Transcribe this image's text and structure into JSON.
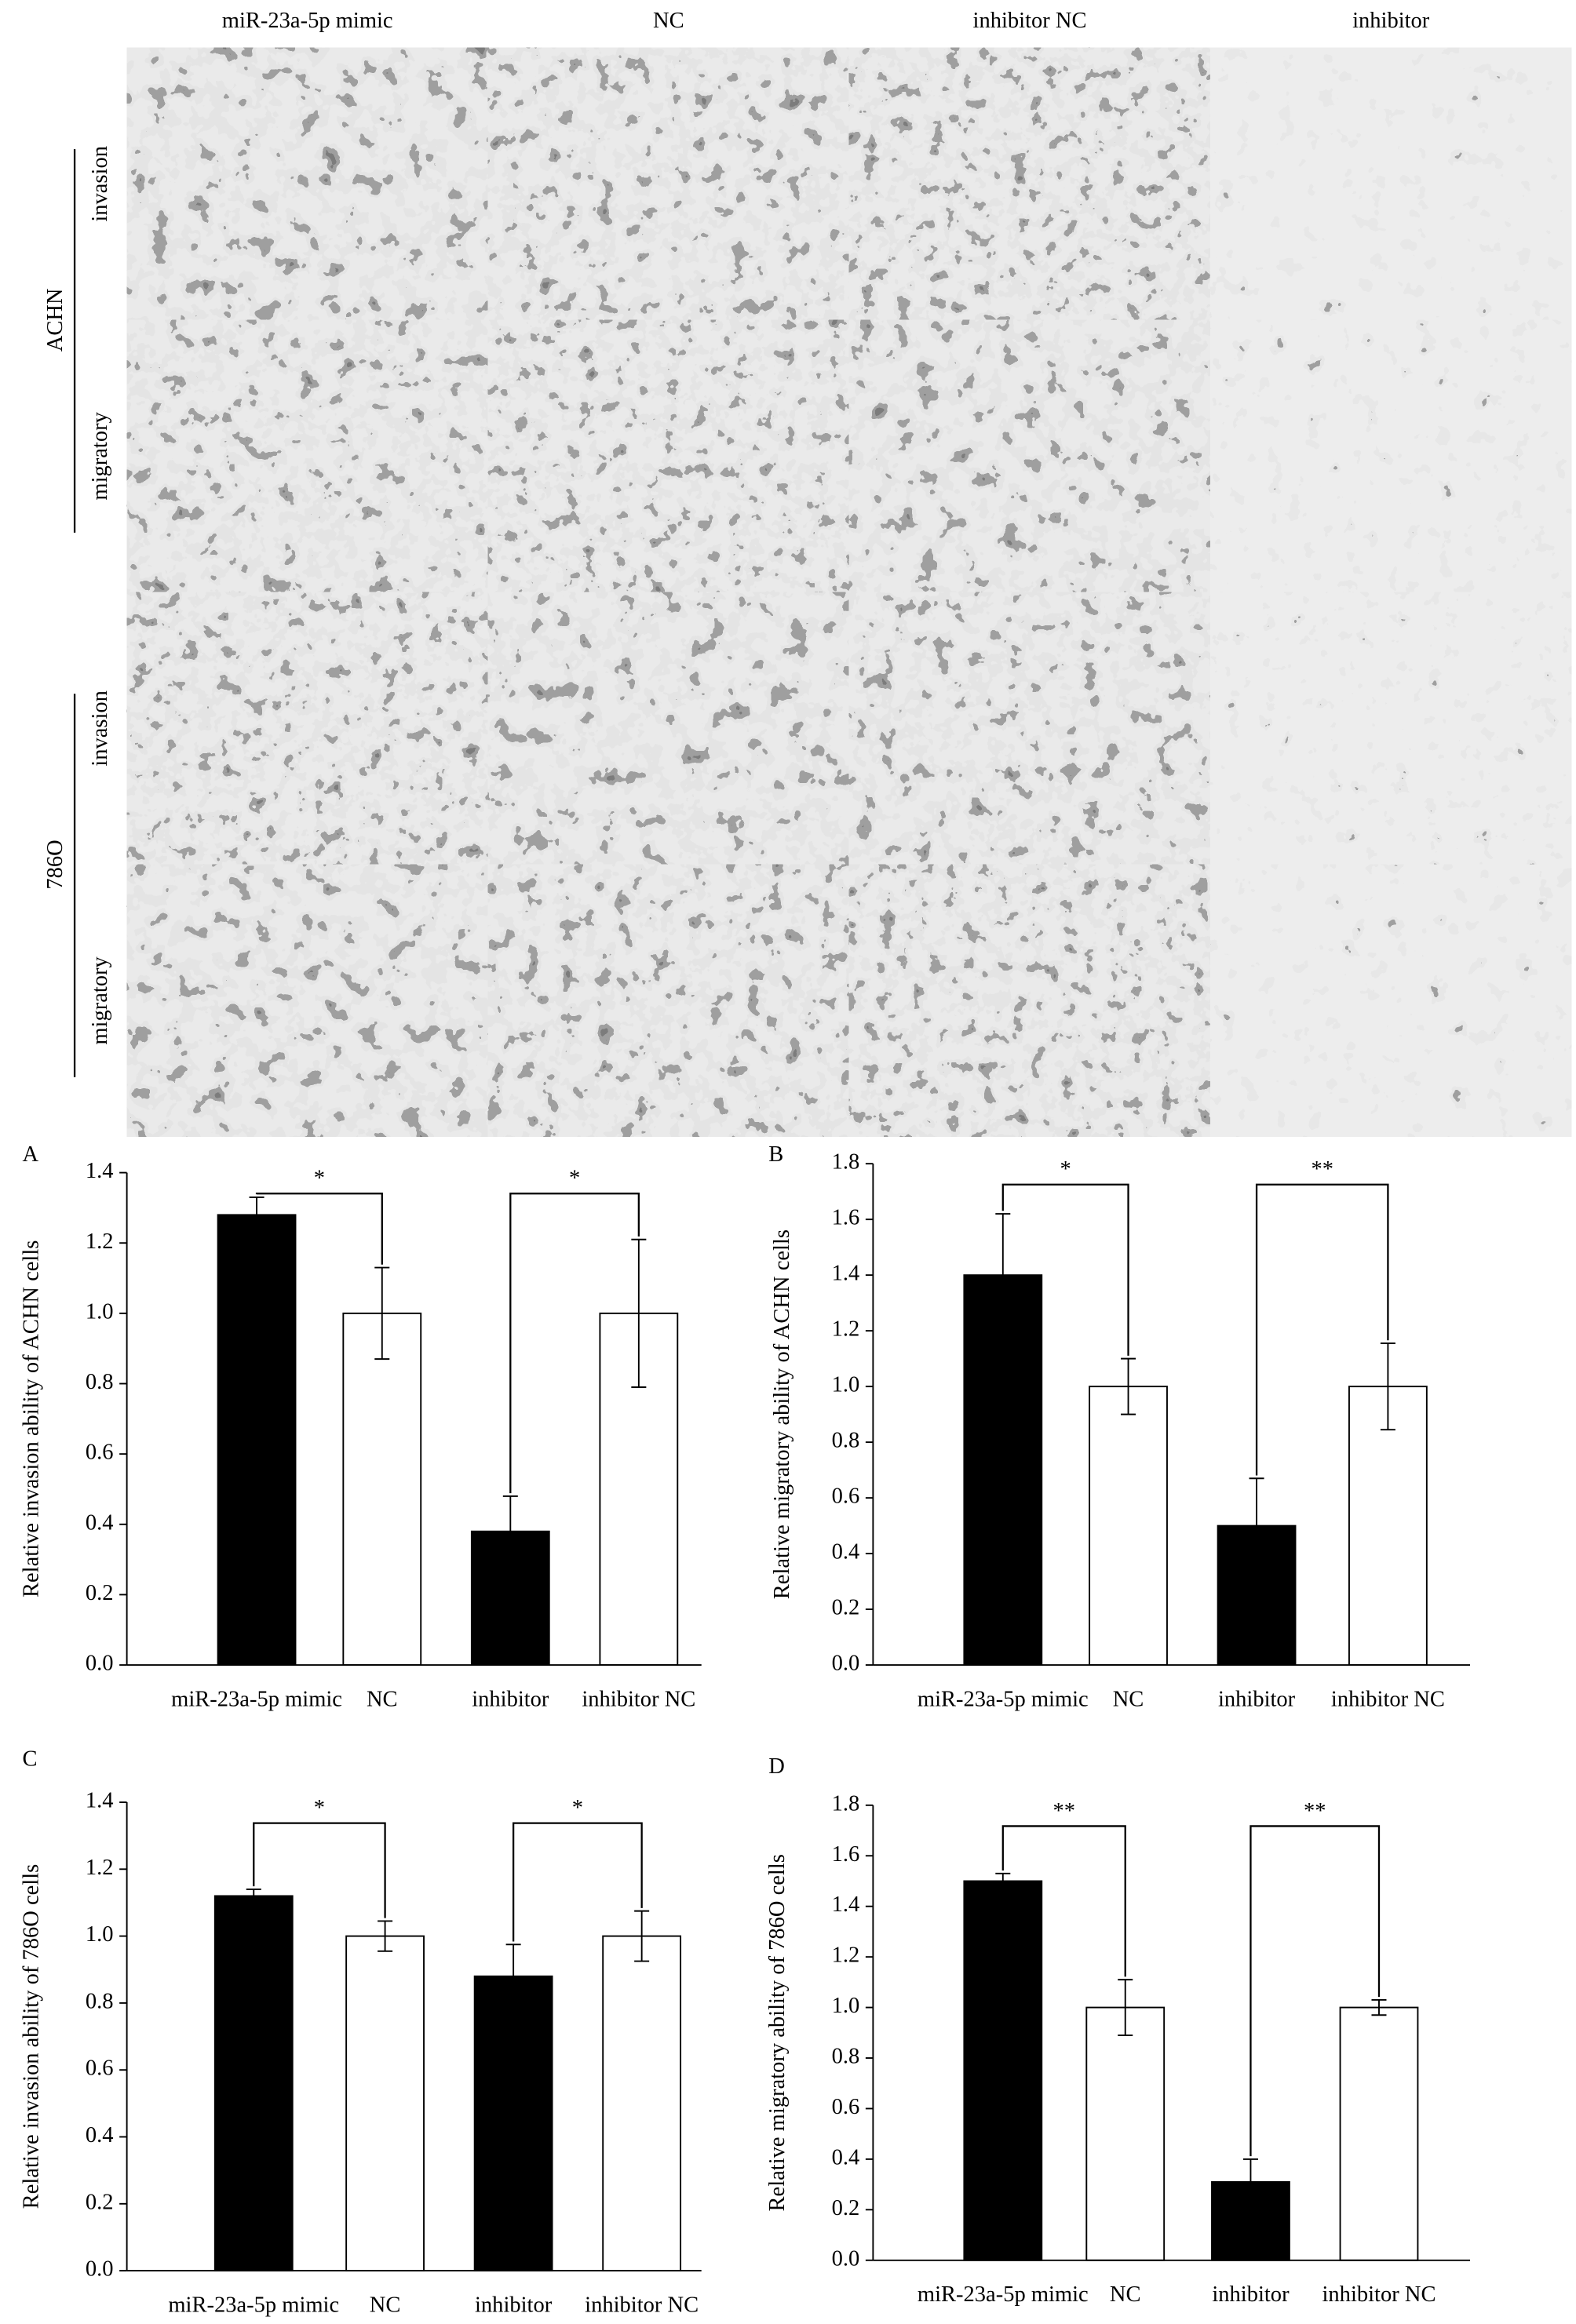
{
  "micrographs": {
    "columns": [
      "miR-23a-5p mimic",
      "NC",
      "inhibitor NC",
      "inhibitor"
    ],
    "cell_lines": [
      {
        "name": "ACHN",
        "rows": [
          "invasion",
          "migratory"
        ]
      },
      {
        "name": "786O",
        "rows": [
          "invasion",
          "migratory"
        ]
      }
    ]
  },
  "chart_data": [
    {
      "type": "bar",
      "panel": "A",
      "ylabel": "Relative invasion ability of ACHN cells",
      "categories": [
        "miR-23a-5p mimic",
        "NC",
        "inhibitor",
        "inhibitor NC"
      ],
      "values": [
        1.28,
        1.0,
        0.38,
        1.0
      ],
      "errors": [
        0.05,
        0.13,
        0.1,
        0.21
      ],
      "colors": [
        "#000000",
        "#ffffff",
        "#000000",
        "#ffffff"
      ],
      "ylim": [
        0,
        1.4
      ],
      "yticks": [
        {
          "value": 0,
          "label": "0.0"
        },
        0.2,
        0.4,
        0.6,
        0.8,
        {
          "value": 1,
          "label": "1.0"
        },
        1.2,
        1.4
      ],
      "significance": [
        "*",
        "*"
      ]
    },
    {
      "type": "bar",
      "panel": "B",
      "ylabel": "Relative migratory ability of ACHN cells",
      "categories": [
        "miR-23a-5p mimic",
        "NC",
        "inhibitor",
        "inhibitor NC"
      ],
      "values": [
        1.4,
        1.0,
        0.5,
        1.0
      ],
      "errors": [
        0.22,
        0.1,
        0.17,
        0.155
      ],
      "colors": [
        "#000000",
        "#ffffff",
        "#000000",
        "#ffffff"
      ],
      "ylim": [
        0,
        1.8
      ],
      "yticks": [
        {
          "value": 0,
          "label": "0.0"
        },
        0.2,
        0.4,
        0.6,
        0.8,
        {
          "value": 1,
          "label": "1.0"
        },
        1.2,
        1.4,
        1.6,
        1.8
      ],
      "significance": [
        "*",
        "**"
      ]
    },
    {
      "type": "bar",
      "panel": "C",
      "ylabel": "Relative invasion ability of 786O cells",
      "categories": [
        "miR-23a-5p mimic",
        "NC",
        "inhibitor",
        "inhibitor NC"
      ],
      "values": [
        1.12,
        1.0,
        0.88,
        1.0
      ],
      "errors": [
        0.02,
        0.045,
        0.095,
        0.075
      ],
      "colors": [
        "#000000",
        "#ffffff",
        "#000000",
        "#ffffff"
      ],
      "ylim": [
        0,
        1.4
      ],
      "yticks": [
        {
          "value": 0,
          "label": "0.0"
        },
        0.2,
        0.4,
        0.6,
        0.8,
        {
          "value": 1,
          "label": "1.0"
        },
        1.2,
        1.4
      ],
      "significance": [
        "*",
        "*"
      ]
    },
    {
      "type": "bar",
      "panel": "D",
      "ylabel": "Relative migratory ability of 786O cells",
      "categories": [
        "miR-23a-5p mimic",
        "NC",
        "inhibitor",
        "inhibitor NC"
      ],
      "values": [
        1.5,
        1.0,
        0.31,
        1.0
      ],
      "errors": [
        0.03,
        0.11,
        0.09,
        0.03
      ],
      "colors": [
        "#000000",
        "#ffffff",
        "#000000",
        "#ffffff"
      ],
      "ylim": [
        0,
        1.8
      ],
      "yticks": [
        {
          "value": 0,
          "label": "0.0"
        },
        0.2,
        0.4,
        0.6,
        0.8,
        {
          "value": 1,
          "label": "1.0"
        },
        1.2,
        1.4,
        1.6,
        1.8
      ],
      "significance": [
        "**",
        "**"
      ]
    }
  ]
}
